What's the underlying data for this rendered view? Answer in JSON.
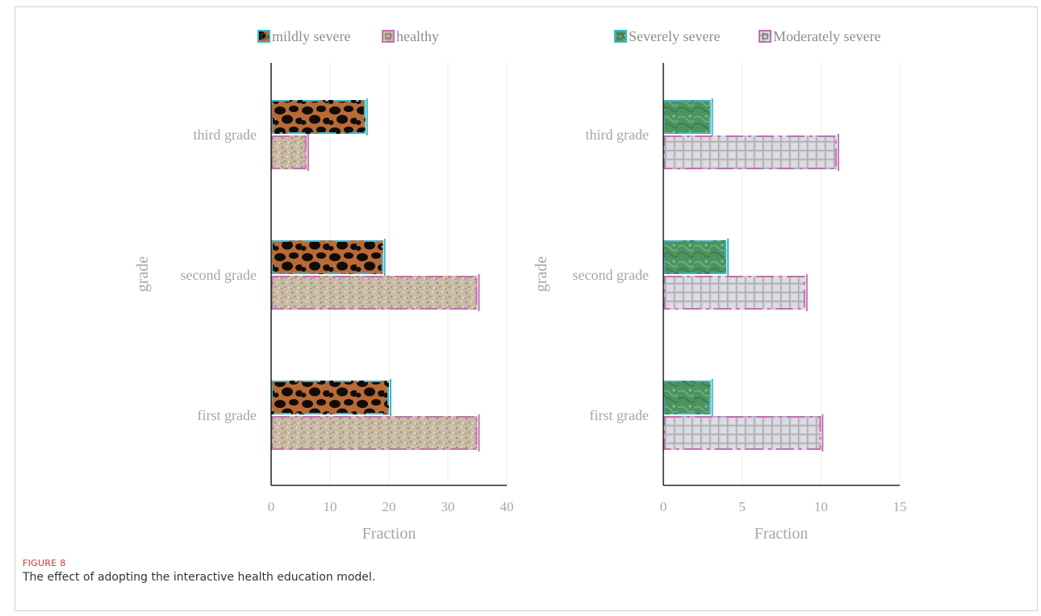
{
  "caption": {
    "label": "FIGURE 8",
    "text": "The effect of adopting the interactive health education model."
  },
  "colors": {
    "leopard": "#b86a38",
    "gravel": "#c7b8a2",
    "green": "#4a8f5a",
    "gray_grid": "#c9c9cf",
    "teal_outline": "#3cb7c8",
    "pink_outline": "#c46fb3",
    "gridline": "#ececec",
    "axis": "#000000"
  },
  "chart_data": [
    {
      "type": "bar",
      "orientation": "horizontal",
      "categories": [
        "first grade",
        "second grade",
        "third grade"
      ],
      "series": [
        {
          "name": "mildly severe",
          "values": [
            20,
            19,
            16
          ]
        },
        {
          "name": "healthy",
          "values": [
            35,
            35,
            6
          ]
        }
      ],
      "xlabel": "Fraction",
      "ylabel": "grade",
      "xlim": [
        0,
        40
      ],
      "xticks": [
        0,
        10,
        20,
        30,
        40
      ],
      "legend_position": "top",
      "grid": "vertical"
    },
    {
      "type": "bar",
      "orientation": "horizontal",
      "categories": [
        "first grade",
        "second grade",
        "third grade"
      ],
      "series": [
        {
          "name": "Severely severe",
          "values": [
            3,
            4,
            3
          ]
        },
        {
          "name": "Moderately severe",
          "values": [
            10,
            9,
            11
          ]
        }
      ],
      "xlabel": "Fraction",
      "ylabel": "grade",
      "xlim": [
        0,
        15
      ],
      "xticks": [
        0,
        5,
        10,
        15
      ],
      "legend_position": "top",
      "grid": "vertical"
    }
  ]
}
